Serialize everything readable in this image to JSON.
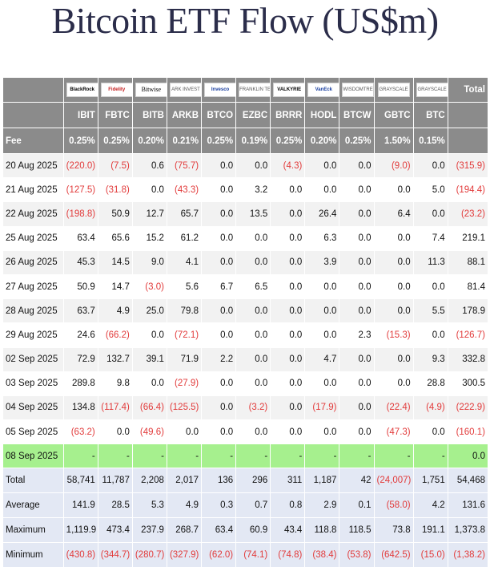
{
  "title": "Bitcoin ETF Flow (US$m)",
  "table": {
    "total_header": "Total",
    "fee_label": "Fee",
    "issuers": [
      {
        "logo": "BlackRock",
        "ticker": "IBIT",
        "fee": "0.25%",
        "style": "bold"
      },
      {
        "logo": "Fidelity",
        "ticker": "FBTC",
        "fee": "0.25%",
        "style": "red"
      },
      {
        "logo": "Bitwise",
        "ticker": "BITB",
        "fee": "0.20%",
        "style": "serif"
      },
      {
        "logo": "ARK INVEST",
        "ticker": "ARKB",
        "fee": "0.21%",
        "style": "grey"
      },
      {
        "logo": "Invesco",
        "ticker": "BTCO",
        "fee": "0.25%",
        "style": "blue"
      },
      {
        "logo": "FRANKLIN TEMPLETON",
        "ticker": "EZBC",
        "fee": "0.19%",
        "style": "grey"
      },
      {
        "logo": "VALKYRIE",
        "ticker": "BRRR",
        "fee": "0.25%",
        "style": "bold"
      },
      {
        "logo": "VanEck",
        "ticker": "HODL",
        "fee": "0.20%",
        "style": "blue"
      },
      {
        "logo": "WISDOMTREE",
        "ticker": "BTCW",
        "fee": "0.25%",
        "style": "grey"
      },
      {
        "logo": "GRAYSCALE",
        "ticker": "GBTC",
        "fee": "1.50%",
        "style": "grey"
      },
      {
        "logo": "GRAYSCALE",
        "ticker": "BTC",
        "fee": "0.15%",
        "style": "grey"
      }
    ],
    "rows": [
      {
        "date": "20 Aug 2025",
        "values": [
          "(220.0)",
          "(7.5)",
          "0.6",
          "(75.7)",
          "0.0",
          "0.0",
          "(4.3)",
          "0.0",
          "0.0",
          "(9.0)",
          "0.0"
        ],
        "total": "(315.9)"
      },
      {
        "date": "21 Aug 2025",
        "values": [
          "(127.5)",
          "(31.8)",
          "0.0",
          "(43.3)",
          "0.0",
          "3.2",
          "0.0",
          "0.0",
          "0.0",
          "0.0",
          "5.0"
        ],
        "total": "(194.4)"
      },
      {
        "date": "22 Aug 2025",
        "values": [
          "(198.8)",
          "50.9",
          "12.7",
          "65.7",
          "0.0",
          "13.5",
          "0.0",
          "26.4",
          "0.0",
          "6.4",
          "0.0"
        ],
        "total": "(23.2)"
      },
      {
        "date": "25 Aug 2025",
        "values": [
          "63.4",
          "65.6",
          "15.2",
          "61.2",
          "0.0",
          "0.0",
          "0.0",
          "6.3",
          "0.0",
          "0.0",
          "7.4"
        ],
        "total": "219.1"
      },
      {
        "date": "26 Aug 2025",
        "values": [
          "45.3",
          "14.5",
          "9.0",
          "4.1",
          "0.0",
          "0.0",
          "0.0",
          "3.9",
          "0.0",
          "0.0",
          "11.3"
        ],
        "total": "88.1"
      },
      {
        "date": "27 Aug 2025",
        "values": [
          "50.9",
          "14.7",
          "(3.0)",
          "5.6",
          "6.7",
          "6.5",
          "0.0",
          "0.0",
          "0.0",
          "0.0",
          "0.0"
        ],
        "total": "81.4"
      },
      {
        "date": "28 Aug 2025",
        "values": [
          "63.7",
          "4.9",
          "25.0",
          "79.8",
          "0.0",
          "0.0",
          "0.0",
          "0.0",
          "0.0",
          "0.0",
          "5.5"
        ],
        "total": "178.9"
      },
      {
        "date": "29 Aug 2025",
        "values": [
          "24.6",
          "(66.2)",
          "0.0",
          "(72.1)",
          "0.0",
          "0.0",
          "0.0",
          "0.0",
          "2.3",
          "(15.3)",
          "0.0"
        ],
        "total": "(126.7)"
      },
      {
        "date": "02 Sep 2025",
        "values": [
          "72.9",
          "132.7",
          "39.1",
          "71.9",
          "2.2",
          "0.0",
          "0.0",
          "4.7",
          "0.0",
          "0.0",
          "9.3"
        ],
        "total": "332.8"
      },
      {
        "date": "03 Sep 2025",
        "values": [
          "289.8",
          "9.8",
          "0.0",
          "(27.9)",
          "0.0",
          "0.0",
          "0.0",
          "0.0",
          "0.0",
          "0.0",
          "28.8"
        ],
        "total": "300.5"
      },
      {
        "date": "04 Sep 2025",
        "values": [
          "134.8",
          "(117.4)",
          "(66.4)",
          "(125.5)",
          "0.0",
          "(3.2)",
          "0.0",
          "(17.9)",
          "0.0",
          "(22.4)",
          "(4.9)"
        ],
        "total": "(222.9)"
      },
      {
        "date": "05 Sep 2025",
        "values": [
          "(63.2)",
          "0.0",
          "(49.6)",
          "0.0",
          "0.0",
          "0.0",
          "0.0",
          "0.0",
          "0.0",
          "(47.3)",
          "0.0"
        ],
        "total": "(160.1)"
      },
      {
        "date": "08 Sep 2025",
        "values": [
          "-",
          "-",
          "-",
          "-",
          "-",
          "-",
          "-",
          "-",
          "-",
          "-",
          "-"
        ],
        "total": "0.0",
        "highlight": true
      }
    ],
    "summary": [
      {
        "label": "Total",
        "values": [
          "58,741",
          "11,787",
          "2,208",
          "2,017",
          "136",
          "296",
          "311",
          "1,187",
          "42",
          "(24,007)",
          "1,751"
        ],
        "total": "54,468"
      },
      {
        "label": "Average",
        "values": [
          "141.9",
          "28.5",
          "5.3",
          "4.9",
          "0.3",
          "0.7",
          "0.8",
          "2.9",
          "0.1",
          "(58.0)",
          "4.2"
        ],
        "total": "131.6"
      },
      {
        "label": "Maximum",
        "values": [
          "1,119.9",
          "473.4",
          "237.9",
          "268.7",
          "63.4",
          "60.9",
          "43.4",
          "118.8",
          "118.5",
          "73.8",
          "191.1"
        ],
        "total": "1,373.8"
      },
      {
        "label": "Minimum",
        "values": [
          "(430.8)",
          "(344.7)",
          "(280.7)",
          "(327.9)",
          "(62.0)",
          "(74.1)",
          "(74.8)",
          "(38.4)",
          "(53.8)",
          "(642.5)",
          "(15.0)"
        ],
        "total": "(1,38.2)"
      }
    ]
  },
  "colors": {
    "header_bg": "#8b8b8b",
    "negative": "#e23b3b",
    "highlight_row": "#a6f08e",
    "summary_bg": "#e3e8f4",
    "title": "#2b2d4a"
  }
}
